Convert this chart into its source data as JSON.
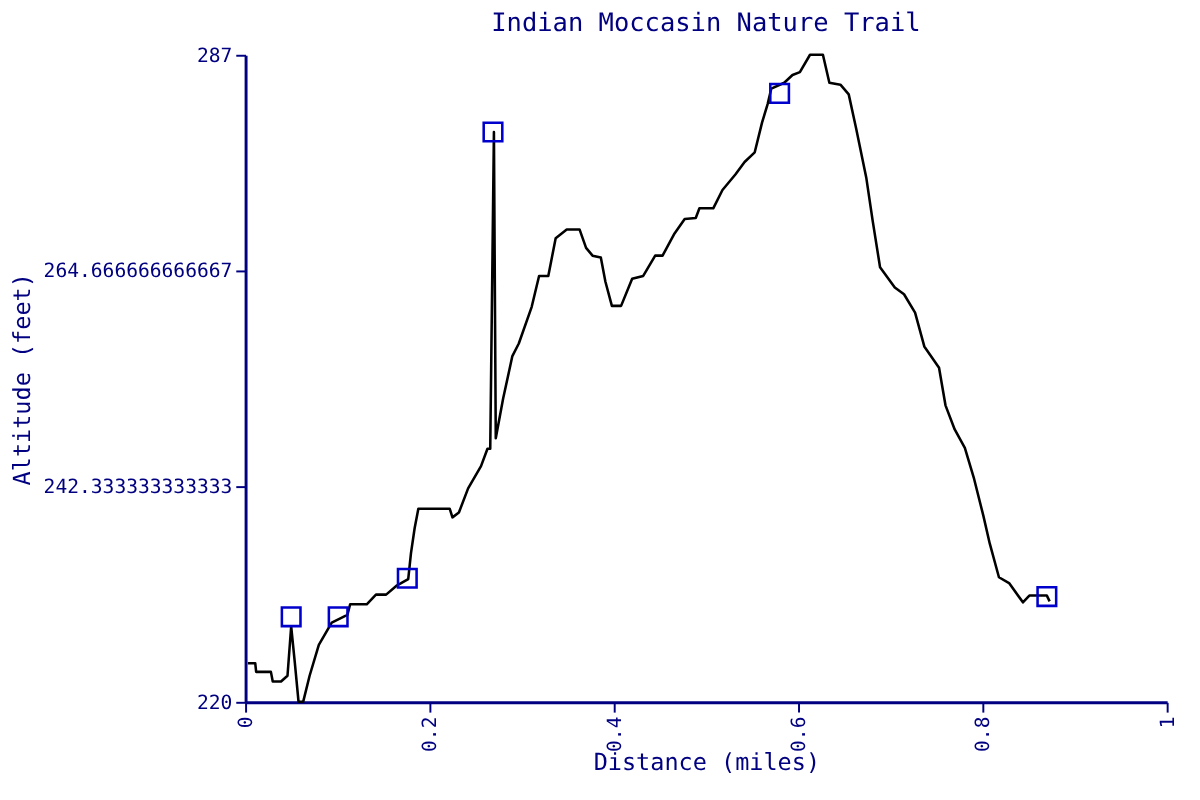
{
  "chart_data": {
    "type": "line",
    "title": "Indian Moccasin Nature Trail",
    "xlabel": "Distance (miles)",
    "ylabel": "Altitude (feet)",
    "xlim": [
      0,
      1
    ],
    "xticks": [
      0,
      0.2,
      0.4,
      0.6,
      0.8,
      1
    ],
    "ylim": [
      220,
      287
    ],
    "yticks": [
      220,
      {
        "value": 242.333333333333,
        "label": "242.333333333333"
      },
      {
        "value": 264.666666666667,
        "label": "264.666666666667"
      },
      287
    ],
    "grid": false,
    "series": [
      {
        "type": "line",
        "color": "#000000",
        "marker": "none",
        "line_style": "solid",
        "x": [
          0.003,
          0.011,
          0.012,
          0.028,
          0.03,
          0.039,
          0.046,
          0.05,
          0.054,
          0.058,
          0.063,
          0.07,
          0.08,
          0.094,
          0.111,
          0.114,
          0.132,
          0.142,
          0.153,
          0.164,
          0.177,
          0.18,
          0.184,
          0.188,
          0.222,
          0.225,
          0.232,
          0.242,
          0.256,
          0.263,
          0.266,
          0.27,
          0.272,
          0.28,
          0.29,
          0.297,
          0.311,
          0.319,
          0.329,
          0.337,
          0.349,
          0.363,
          0.37,
          0.377,
          0.386,
          0.391,
          0.398,
          0.408,
          0.42,
          0.432,
          0.445,
          0.453,
          0.466,
          0.477,
          0.489,
          0.493,
          0.508,
          0.518,
          0.532,
          0.542,
          0.553,
          0.561,
          0.567,
          0.571,
          0.585,
          0.594,
          0.602,
          0.613,
          0.627,
          0.634,
          0.646,
          0.655,
          0.663,
          0.674,
          0.681,
          0.689,
          0.705,
          0.715,
          0.727,
          0.737,
          0.753,
          0.76,
          0.77,
          0.781,
          0.791,
          0.801,
          0.808,
          0.818,
          0.829,
          0.844,
          0.851,
          0.87,
          0.873
        ],
        "values": [
          224.0,
          224.0,
          223.1,
          223.1,
          222.1,
          222.1,
          222.7,
          227.8,
          224.0,
          220.0,
          220.0,
          222.7,
          225.9,
          228.2,
          229.0,
          230.1,
          230.1,
          231.1,
          231.1,
          232.0,
          232.7,
          235.4,
          238.0,
          240.0,
          240.0,
          239.1,
          239.6,
          242.1,
          244.4,
          246.2,
          246.2,
          279.0,
          247.3,
          251.4,
          255.8,
          257.1,
          260.9,
          264.1,
          264.1,
          268.0,
          268.9,
          268.9,
          267.0,
          266.2,
          266.0,
          263.5,
          261.0,
          261.0,
          263.8,
          264.1,
          266.2,
          266.2,
          268.5,
          270.0,
          270.1,
          271.1,
          271.1,
          273.0,
          274.6,
          275.9,
          276.9,
          280.0,
          281.9,
          283.5,
          284.1,
          284.9,
          285.2,
          287.0,
          287.0,
          284.1,
          283.9,
          282.9,
          279.4,
          274.3,
          269.8,
          265.0,
          262.9,
          262.2,
          260.3,
          256.8,
          254.6,
          250.7,
          248.2,
          246.3,
          243.1,
          239.3,
          236.4,
          232.9,
          232.3,
          230.3,
          231.0,
          231.0,
          230.4
        ]
      },
      {
        "type": "scatter",
        "color": "#0000cc",
        "marker": "square",
        "x": [
          0.05,
          0.101,
          0.176,
          0.269,
          0.58,
          0.87
        ],
        "values": [
          228.8,
          228.8,
          232.8,
          279.0,
          283.0,
          230.9
        ]
      }
    ]
  }
}
